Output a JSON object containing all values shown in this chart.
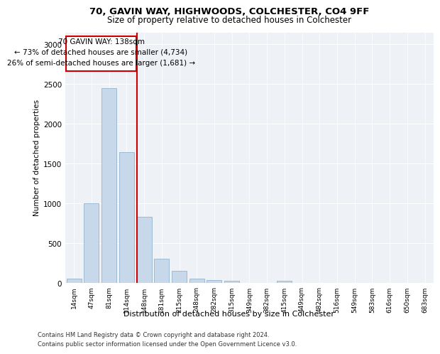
{
  "title1": "70, GAVIN WAY, HIGHWOODS, COLCHESTER, CO4 9FF",
  "title2": "Size of property relative to detached houses in Colchester",
  "xlabel": "Distribution of detached houses by size in Colchester",
  "ylabel": "Number of detached properties",
  "footnote1": "Contains HM Land Registry data © Crown copyright and database right 2024.",
  "footnote2": "Contains public sector information licensed under the Open Government Licence v3.0.",
  "annotation_title": "70 GAVIN WAY: 138sqm",
  "annotation_line1": "← 73% of detached houses are smaller (4,734)",
  "annotation_line2": "26% of semi-detached houses are larger (1,681) →",
  "red_line_color": "#cc0000",
  "bar_color": "#c8d8eb",
  "bar_edge_color": "#93b4cc",
  "bg_color": "#eef2f7",
  "categories": [
    "14sqm",
    "47sqm",
    "81sqm",
    "114sqm",
    "148sqm",
    "181sqm",
    "215sqm",
    "248sqm",
    "282sqm",
    "315sqm",
    "349sqm",
    "382sqm",
    "415sqm",
    "449sqm",
    "482sqm",
    "516sqm",
    "549sqm",
    "583sqm",
    "616sqm",
    "650sqm",
    "683sqm"
  ],
  "values": [
    55,
    1000,
    2450,
    1640,
    835,
    300,
    150,
    55,
    38,
    25,
    0,
    0,
    30,
    0,
    0,
    0,
    0,
    0,
    0,
    0,
    0
  ],
  "ylim": [
    0,
    3150
  ],
  "yticks": [
    0,
    500,
    1000,
    1500,
    2000,
    2500,
    3000
  ]
}
